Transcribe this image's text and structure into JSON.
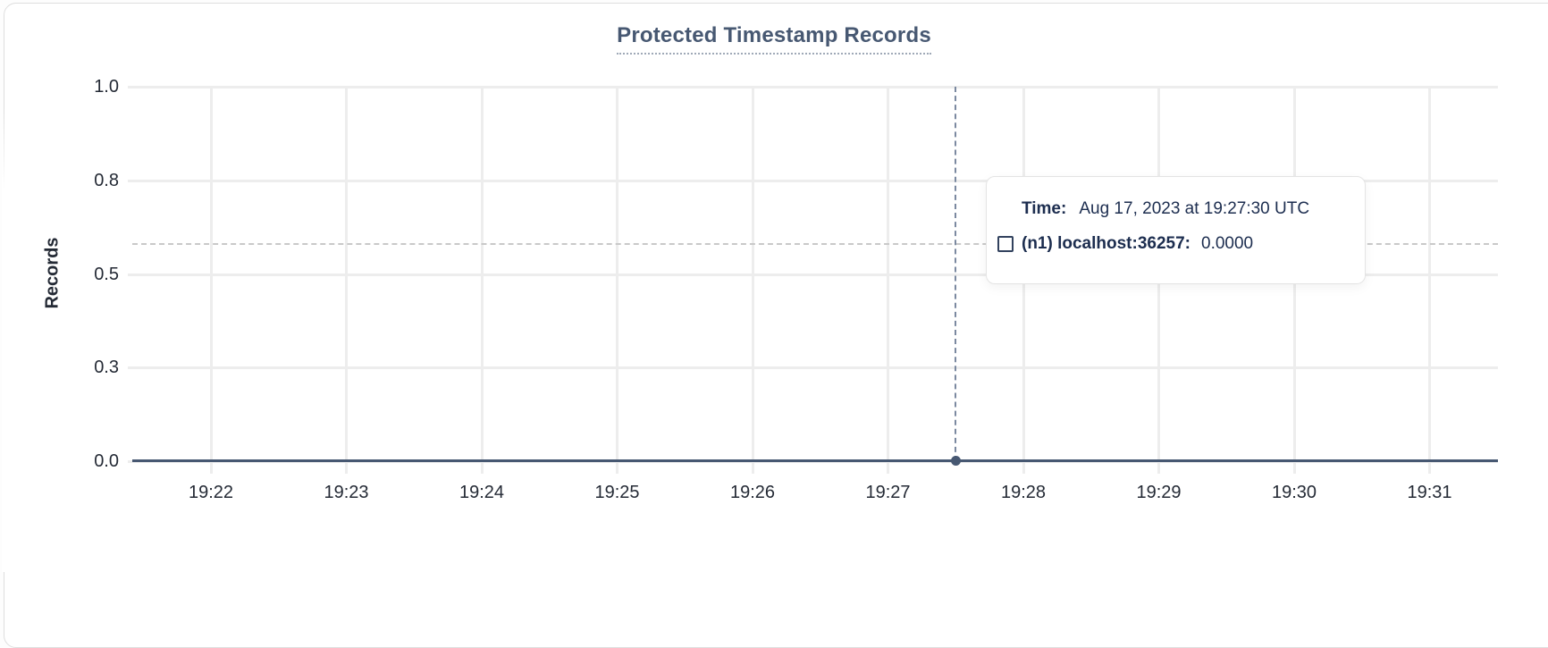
{
  "chart": {
    "title": "Protected Timestamp Records",
    "ylabel": "Records",
    "y_ticks": [
      "1.0",
      "0.8",
      "0.5",
      "0.3",
      "0.0"
    ],
    "x_ticks": [
      "19:22",
      "19:23",
      "19:24",
      "19:25",
      "19:26",
      "19:27",
      "19:28",
      "19:29",
      "19:30",
      "19:31"
    ]
  },
  "chart_data": {
    "type": "line",
    "title": "Protected Timestamp Records",
    "xlabel": "",
    "ylabel": "Records",
    "ylim": [
      0.0,
      1.0
    ],
    "y_tick_values": [
      0.0,
      0.25,
      0.5,
      0.75,
      1.0
    ],
    "y_tick_labels": [
      "0.0",
      "0.3",
      "0.5",
      "0.8",
      "1.0"
    ],
    "x": [
      "19:22",
      "19:23",
      "19:24",
      "19:25",
      "19:26",
      "19:27",
      "19:28",
      "19:29",
      "19:30",
      "19:31"
    ],
    "series": [
      {
        "name": "(n1) localhost:36257",
        "values": [
          0,
          0,
          0,
          0,
          0,
          0,
          0,
          0,
          0,
          0
        ]
      }
    ],
    "hover_point": {
      "x": "19:27:30",
      "y": 0.0
    },
    "grid": true,
    "legend_position": "none"
  },
  "tooltip": {
    "time_label": "Time:",
    "time_value": "Aug 17, 2023 at 19:27:30 UTC",
    "series_label": "(n1) localhost:36257:",
    "series_value": "0.0000"
  },
  "colors": {
    "title": "#475872",
    "line": "#475872",
    "axis_text": "#242a35",
    "tooltip_text": "#1c2d4f",
    "grid": "#ededed",
    "card_border": "#dedede",
    "crosshair": "#7b89a0",
    "crosshair_h": "#c9c9c9"
  }
}
